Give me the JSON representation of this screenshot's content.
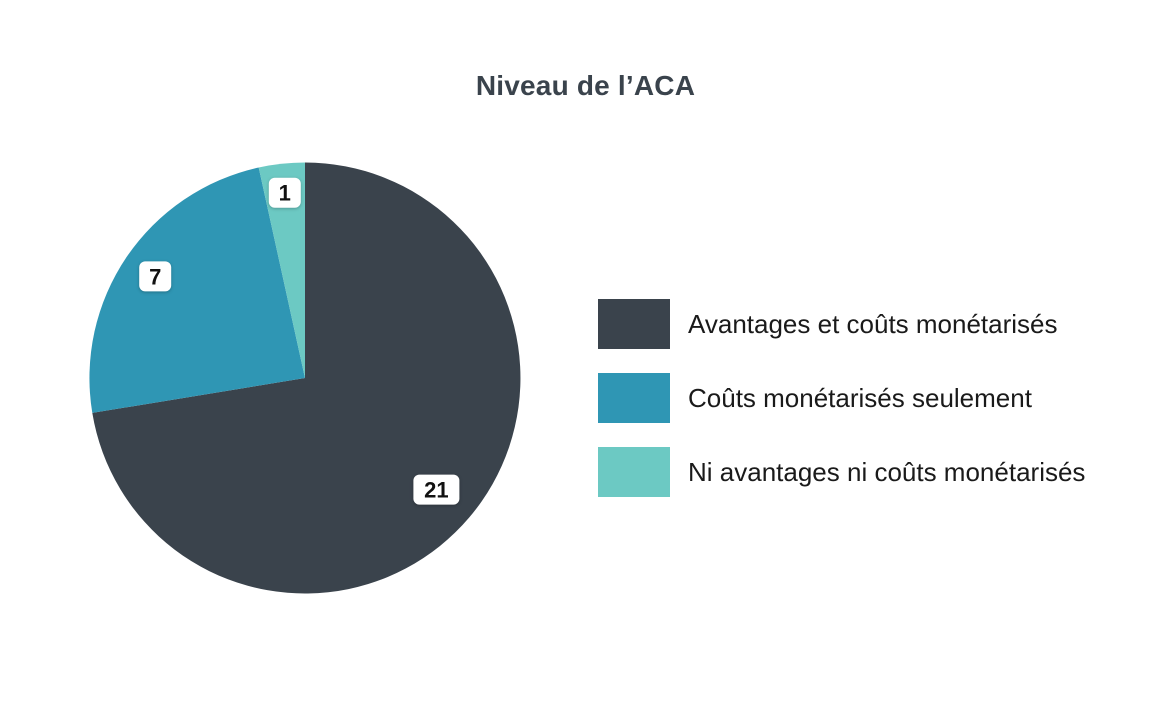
{
  "chart_data": {
    "type": "pie",
    "title": "Niveau de l’ACA",
    "total": 29,
    "start_angle_deg": 0,
    "direction": "clockwise",
    "legend_position": "right",
    "grid": false,
    "label_radius_factors": [
      0.8,
      0.84,
      0.865
    ],
    "series": [
      {
        "label": "Avantages et coûts monétarisés",
        "value": 21,
        "color": "#3A434C"
      },
      {
        "label": "Coûts monétarisés seulement",
        "value": 7,
        "color": "#2F96B4"
      },
      {
        "label": "Ni avantages ni coûts monétarisés",
        "value": 1,
        "color": "#6CC9C3"
      }
    ],
    "data_labels": [
      "21",
      "7",
      "1"
    ]
  },
  "colors": {
    "background": "#FFFFFF",
    "title_text": "#3A434C",
    "legend_text": "#1A1A1A",
    "data_label_bg": "#FFFFFF",
    "data_label_text": "#111111"
  }
}
